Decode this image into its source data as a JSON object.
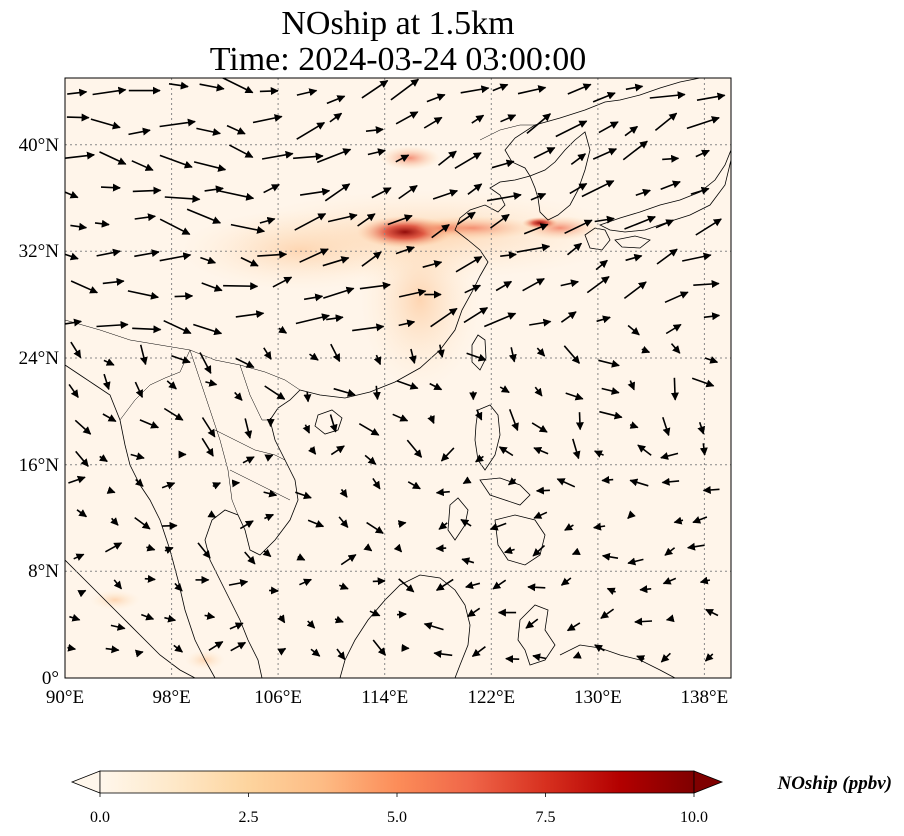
{
  "title": {
    "line1": "NOship at 1.5km",
    "line2": "Time: 2024-03-24 03:00:00"
  },
  "map": {
    "lon_range": [
      90,
      140
    ],
    "lat_range": [
      0,
      45
    ],
    "gridlines": "dotted",
    "lon_ticks": [
      "90°E",
      "98°E",
      "106°E",
      "114°E",
      "122°E",
      "130°E",
      "138°E"
    ],
    "lat_ticks": [
      "0°",
      "8°N",
      "16°N",
      "24°N",
      "32°N",
      "40°N"
    ],
    "field_name": "NOship",
    "vectors": "wind arrows at 1.5km"
  },
  "colorbar": {
    "label": "NOship (ppbv)",
    "ticks": [
      "0.0",
      "2.5",
      "5.0",
      "7.5",
      "10.0"
    ],
    "range": [
      0,
      10
    ],
    "colormap": "OrRd",
    "colors": [
      "#fff7ec",
      "#fee8c8",
      "#fdd49e",
      "#fdbb84",
      "#fc8d59",
      "#ef6548",
      "#d7301f",
      "#b30000",
      "#7f0000"
    ],
    "extend": "both"
  }
}
